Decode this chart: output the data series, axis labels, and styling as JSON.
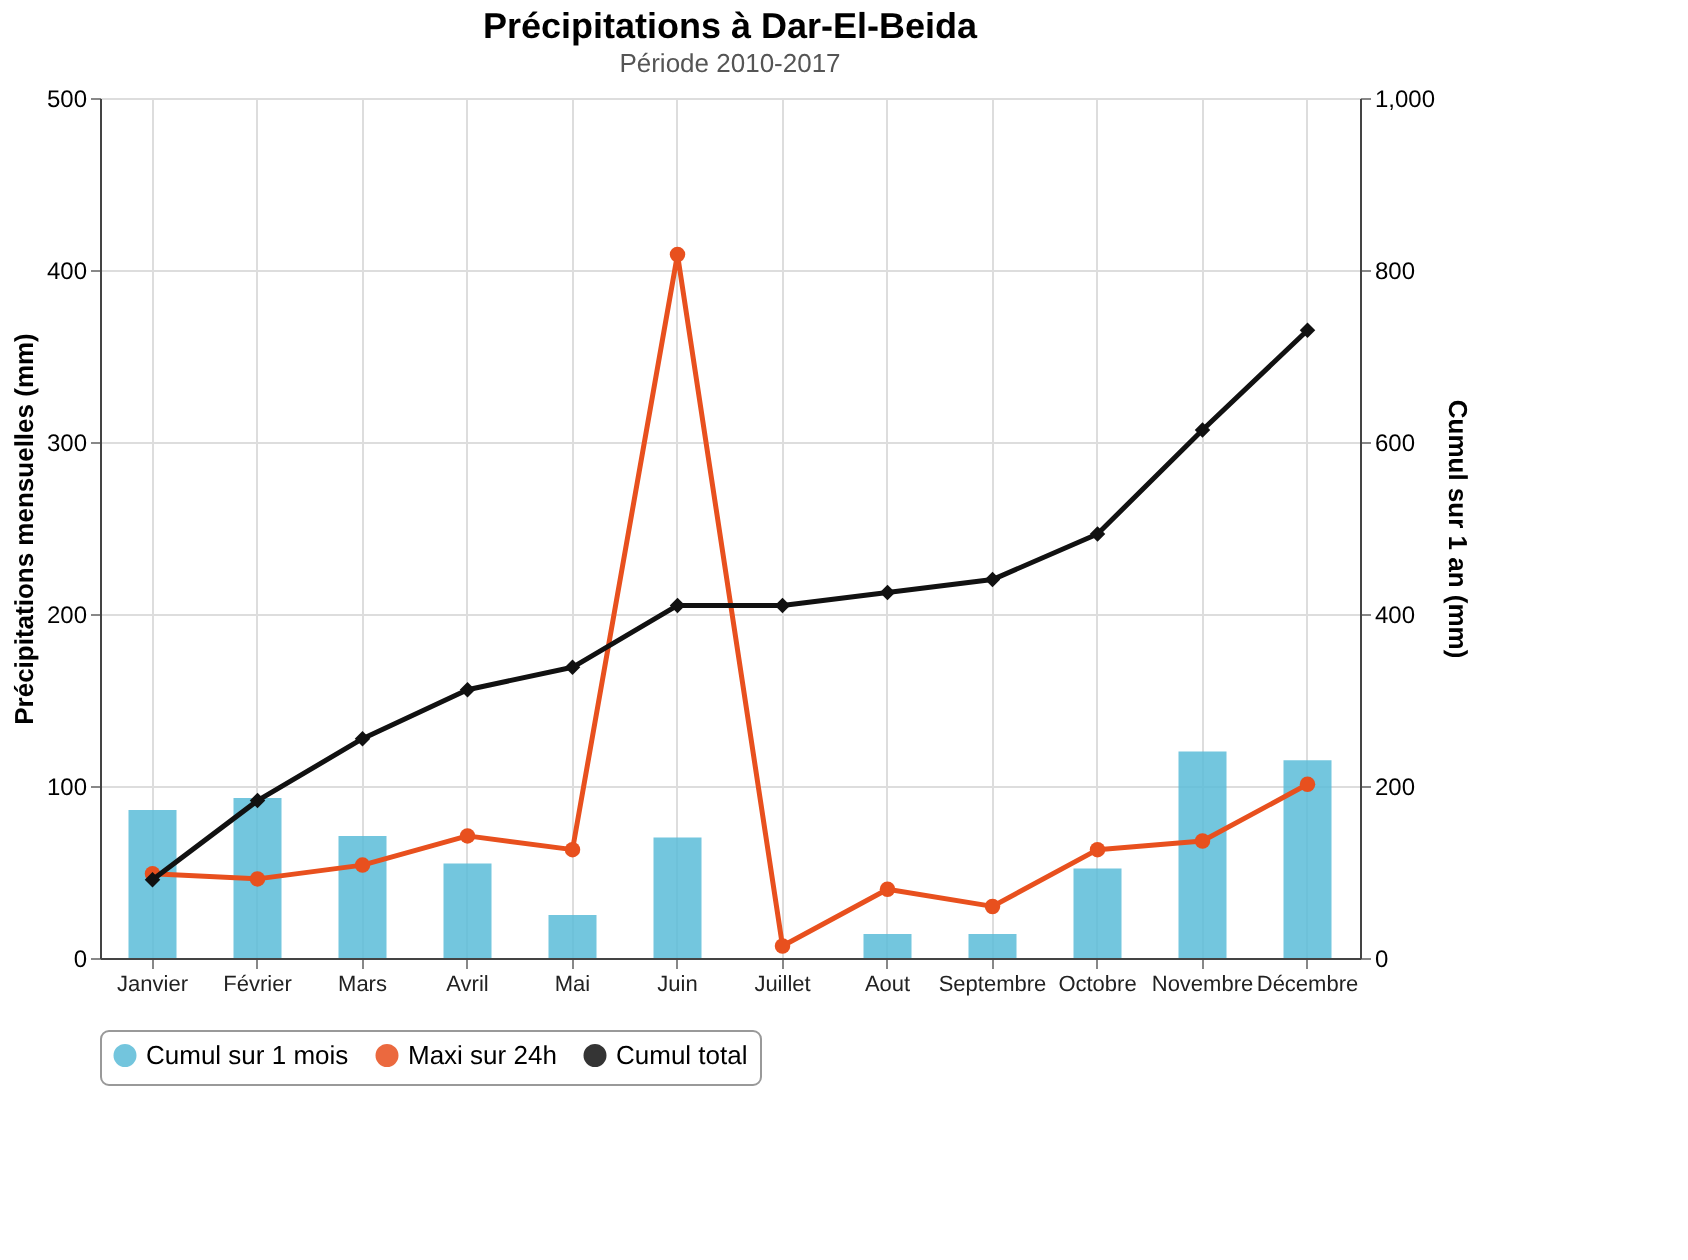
{
  "chart_data": {
    "type": "bar",
    "title": "Précipitations à Dar-El-Beida",
    "subtitle": "Période 2010-2017",
    "ylabel": "Précipitations mensuelles (mm)",
    "y2label": "Cumul sur 1 an (mm)",
    "categories": [
      "Janvier",
      "Février",
      "Mars",
      "Avril",
      "Mai",
      "Juin",
      "Juillet",
      "Aout",
      "Septembre",
      "Octobre",
      "Novembre",
      "Décembre"
    ],
    "series": [
      {
        "name": "Cumul sur 1 mois",
        "color": "#5bbcd8",
        "values": [
          86,
          93,
          71,
          55,
          25,
          70,
          0,
          14,
          14,
          52,
          120,
          115
        ]
      },
      {
        "name": "Maxi sur 24h",
        "type": "line",
        "color": "#e8501e",
        "marker": "circle",
        "values": [
          49,
          46,
          54,
          71,
          63,
          409,
          7,
          40,
          30,
          63,
          68,
          101
        ]
      },
      {
        "name": "Cumul total",
        "type": "line",
        "color": "#111111",
        "marker": "diamond",
        "axis": "y2",
        "values": [
          91,
          183,
          255,
          312,
          338,
          410,
          410,
          425,
          440,
          493,
          614,
          730
        ]
      }
    ],
    "ylim": [
      0,
      500
    ],
    "yticks": [
      0,
      100,
      200,
      300,
      400,
      500
    ],
    "y2lim": [
      0,
      1000
    ],
    "y2ticks": [
      0,
      200,
      400,
      600,
      800,
      {
        "value": 1000,
        "label": "1,000"
      }
    ],
    "grid": true,
    "legend": "bottom",
    "line_style": "solid"
  }
}
